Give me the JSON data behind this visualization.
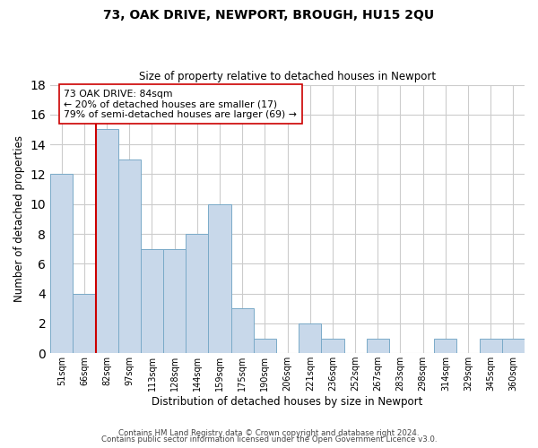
{
  "title": "73, OAK DRIVE, NEWPORT, BROUGH, HU15 2QU",
  "subtitle": "Size of property relative to detached houses in Newport",
  "xlabel": "Distribution of detached houses by size in Newport",
  "ylabel": "Number of detached properties",
  "bar_labels": [
    "51sqm",
    "66sqm",
    "82sqm",
    "97sqm",
    "113sqm",
    "128sqm",
    "144sqm",
    "159sqm",
    "175sqm",
    "190sqm",
    "206sqm",
    "221sqm",
    "236sqm",
    "252sqm",
    "267sqm",
    "283sqm",
    "298sqm",
    "314sqm",
    "329sqm",
    "345sqm",
    "360sqm"
  ],
  "bar_values": [
    12,
    4,
    15,
    13,
    7,
    7,
    8,
    10,
    3,
    1,
    0,
    2,
    1,
    0,
    1,
    0,
    0,
    1,
    0,
    1,
    1
  ],
  "bar_color": "#c8d8ea",
  "bar_edge_color": "#7aaac8",
  "highlight_line_color": "#cc0000",
  "annotation_text": "73 OAK DRIVE: 84sqm\n← 20% of detached houses are smaller (17)\n79% of semi-detached houses are larger (69) →",
  "annotation_box_color": "#ffffff",
  "annotation_box_edge": "#cc0000",
  "ylim": [
    0,
    18
  ],
  "yticks": [
    0,
    2,
    4,
    6,
    8,
    10,
    12,
    14,
    16,
    18
  ],
  "footer_line1": "Contains HM Land Registry data © Crown copyright and database right 2024.",
  "footer_line2": "Contains public sector information licensed under the Open Government Licence v3.0.",
  "bg_color": "#ffffff",
  "grid_color": "#cccccc"
}
